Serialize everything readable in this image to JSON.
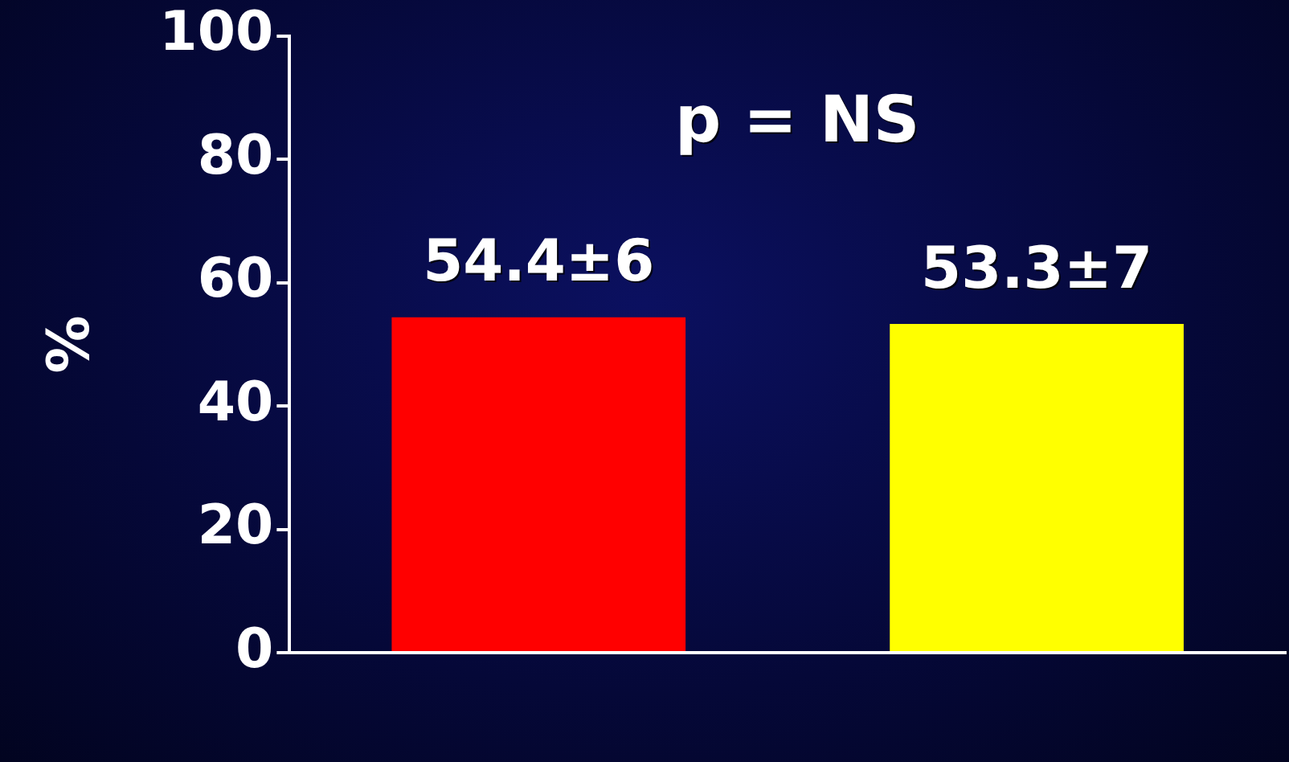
{
  "chart_data": {
    "type": "bar",
    "categories": [
      null,
      null
    ],
    "values": [
      54.4,
      53.3
    ],
    "colors": [
      "#ff0000",
      "#ffff00"
    ],
    "value_labels": [
      "54.4±6",
      "53.3±7"
    ],
    "ylabel": "%",
    "ylim": [
      0,
      100
    ],
    "yticks": [
      0,
      20,
      40,
      60,
      80,
      100
    ],
    "annotations": [
      "p = NS"
    ],
    "grid": false,
    "legend": false
  }
}
